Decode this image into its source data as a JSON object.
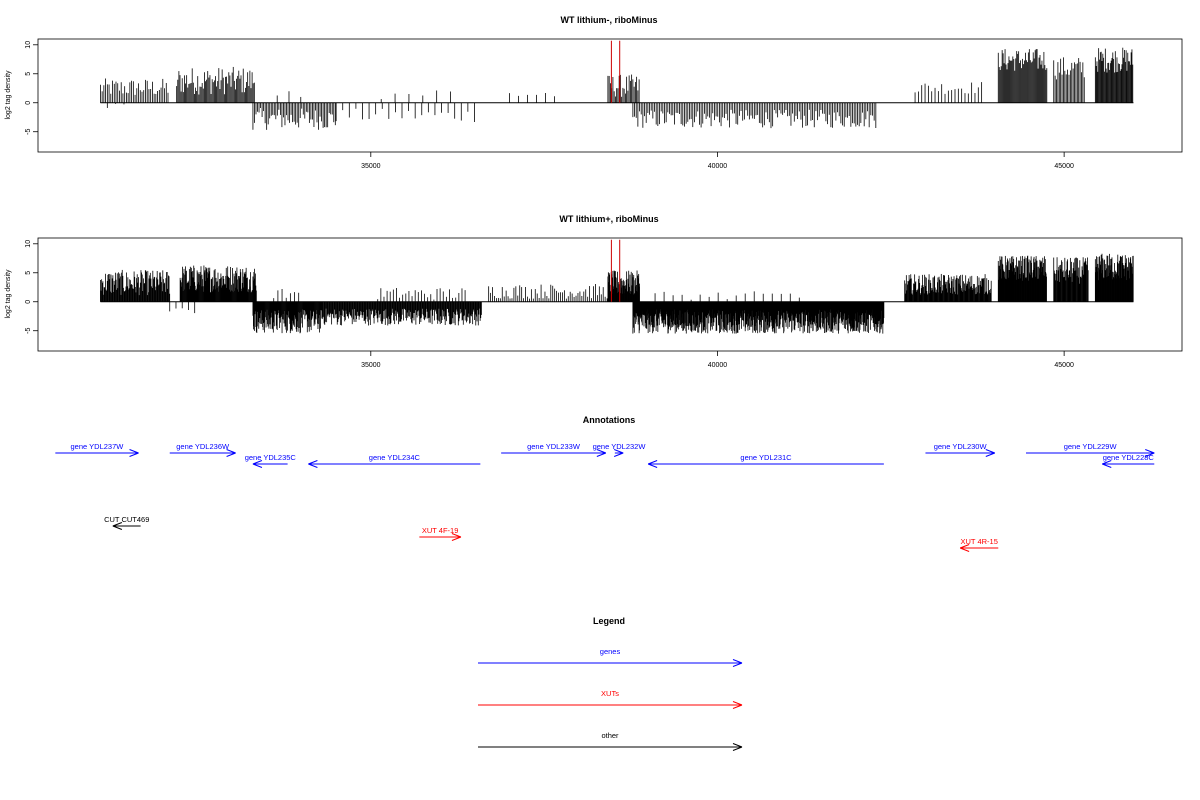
{
  "colors": {
    "gene": "#0000ff",
    "xut": "#ff0000",
    "other": "#000000",
    "marker": "#cc0000",
    "bar": "#000000"
  },
  "chart_data": [
    {
      "type": "bar",
      "title": "WT lithium-, riboMinus",
      "ylabel": "log2 tag density",
      "xlim": [
        30200,
        46700
      ],
      "ylim": [
        -8.5,
        11
      ],
      "xticks": [
        35000,
        40000,
        45000
      ],
      "yticks": [
        -5,
        0,
        5,
        10
      ],
      "baseline_range": [
        31100,
        46000
      ],
      "markers_x": [
        38470,
        38590
      ],
      "segments": [
        {
          "x0": 31100,
          "x1": 32080,
          "mean": 2.6,
          "amp": 1.6,
          "step": 25
        },
        {
          "x0": 31200,
          "x1": 31500,
          "mean": -0.8,
          "amp": 0.8,
          "step": 120
        },
        {
          "x0": 32200,
          "x1": 33320,
          "mean": 3.8,
          "amp": 2.4,
          "step": 16
        },
        {
          "x0": 33300,
          "x1": 34500,
          "mean": -2.8,
          "amp": 1.9,
          "step": 22
        },
        {
          "x0": 33650,
          "x1": 34000,
          "mean": 1.3,
          "amp": 0.8,
          "step": 170
        },
        {
          "x0": 34500,
          "x1": 36500,
          "mean": -2.2,
          "amp": 1.2,
          "step": 95
        },
        {
          "x0": 35150,
          "x1": 36250,
          "mean": 1.6,
          "amp": 1.3,
          "step": 200
        },
        {
          "x0": 37000,
          "x1": 37700,
          "mean": 1.5,
          "amp": 1.0,
          "step": 130
        },
        {
          "x0": 38420,
          "x1": 38870,
          "mean": 2.9,
          "amp": 2.0,
          "step": 18
        },
        {
          "x0": 38780,
          "x1": 42300,
          "mean": -2.8,
          "amp": 1.6,
          "step": 24
        },
        {
          "x0": 42850,
          "x1": 43850,
          "mean": 2.6,
          "amp": 1.1,
          "step": 48
        },
        {
          "x0": 44050,
          "x1": 44750,
          "mean": 7.4,
          "amp": 2.0,
          "step": 14
        },
        {
          "x0": 44850,
          "x1": 45300,
          "mean": 6.0,
          "amp": 2.0,
          "step": 20
        },
        {
          "x0": 45450,
          "x1": 46000,
          "mean": 7.4,
          "amp": 2.2,
          "step": 12
        }
      ]
    },
    {
      "type": "bar",
      "title": "WT lithium+, riboMinus",
      "ylabel": "log2 tag density",
      "xlim": [
        30200,
        46700
      ],
      "ylim": [
        -8.5,
        11
      ],
      "xticks": [
        35000,
        40000,
        45000
      ],
      "yticks": [
        -5,
        0,
        5,
        10
      ],
      "baseline_range": [
        31100,
        46000
      ],
      "markers_x": [
        38470,
        38590
      ],
      "segments": [
        {
          "x0": 31100,
          "x1": 32100,
          "mean": 3.3,
          "amp": 2.2,
          "step": 9
        },
        {
          "x0": 32100,
          "x1": 32500,
          "mean": -1.3,
          "amp": 0.8,
          "step": 90
        },
        {
          "x0": 32250,
          "x1": 33350,
          "mean": 4.0,
          "amp": 2.4,
          "step": 7
        },
        {
          "x0": 33300,
          "x1": 34300,
          "mean": -3.4,
          "amp": 2.1,
          "step": 7
        },
        {
          "x0": 33600,
          "x1": 34000,
          "mean": 1.4,
          "amp": 0.9,
          "step": 60
        },
        {
          "x0": 34300,
          "x1": 36600,
          "mean": -2.6,
          "amp": 1.5,
          "step": 9
        },
        {
          "x0": 35100,
          "x1": 36400,
          "mean": 1.4,
          "amp": 1.1,
          "step": 45
        },
        {
          "x0": 36700,
          "x1": 38420,
          "mean": 1.8,
          "amp": 1.3,
          "step": 28
        },
        {
          "x0": 38420,
          "x1": 38880,
          "mean": 3.2,
          "amp": 2.2,
          "step": 6
        },
        {
          "x0": 38780,
          "x1": 42400,
          "mean": -3.4,
          "amp": 2.1,
          "step": 5
        },
        {
          "x0": 39100,
          "x1": 41300,
          "mean": 1.0,
          "amp": 0.8,
          "step": 130
        },
        {
          "x0": 42700,
          "x1": 43950,
          "mean": 3.0,
          "amp": 1.8,
          "step": 8
        },
        {
          "x0": 44050,
          "x1": 44750,
          "mean": 5.8,
          "amp": 2.2,
          "step": 6
        },
        {
          "x0": 44850,
          "x1": 45350,
          "mean": 5.4,
          "amp": 2.3,
          "step": 8
        },
        {
          "x0": 45450,
          "x1": 46000,
          "mean": 6.0,
          "amp": 2.4,
          "step": 6
        }
      ]
    }
  ],
  "annotations": {
    "title": "Annotations",
    "features": [
      {
        "label": "gene YDL237W",
        "type": "gene",
        "strand": "+",
        "start": 30450,
        "end": 31650,
        "row": 0
      },
      {
        "label": "gene YDL236W",
        "type": "gene",
        "strand": "+",
        "start": 32100,
        "end": 33050,
        "row": 0
      },
      {
        "label": "gene YDL235C",
        "type": "gene",
        "strand": "-",
        "start": 33300,
        "end": 33800,
        "row": 1
      },
      {
        "label": "gene YDL234C",
        "type": "gene",
        "strand": "-",
        "start": 34100,
        "end": 36580,
        "row": 1
      },
      {
        "label": "gene YDL233W",
        "type": "gene",
        "strand": "+",
        "start": 36880,
        "end": 38390,
        "row": 0
      },
      {
        "label": "gene YDL232W",
        "type": "gene",
        "strand": "+",
        "start": 38520,
        "end": 38640,
        "row": 0
      },
      {
        "label": "gene YDL231C",
        "type": "gene",
        "strand": "-",
        "start": 39000,
        "end": 42400,
        "row": 1
      },
      {
        "label": "gene YDL230W",
        "type": "gene",
        "strand": "+",
        "start": 43000,
        "end": 44000,
        "row": 0
      },
      {
        "label": "gene YDL229W",
        "type": "gene",
        "strand": "+",
        "start": 44450,
        "end": 46300,
        "row": 0
      },
      {
        "label": "gene YDL228C",
        "type": "gene",
        "strand": "-",
        "start": 45550,
        "end": 46300,
        "row": 1
      },
      {
        "label": "CUT CUT469",
        "type": "other",
        "strand": "-",
        "start": 31280,
        "end": 31680,
        "row": 2
      },
      {
        "label": "XUT 4F-19",
        "type": "xut",
        "strand": "+",
        "start": 35700,
        "end": 36300,
        "row": 3
      },
      {
        "label": "XUT 4R-15",
        "type": "xut",
        "strand": "-",
        "start": 43500,
        "end": 44050,
        "row": 4
      }
    ]
  },
  "legend": {
    "title": "Legend",
    "items": [
      {
        "label": "genes",
        "type": "gene"
      },
      {
        "label": "XUTs",
        "type": "xut"
      },
      {
        "label": "other",
        "type": "other"
      }
    ]
  }
}
